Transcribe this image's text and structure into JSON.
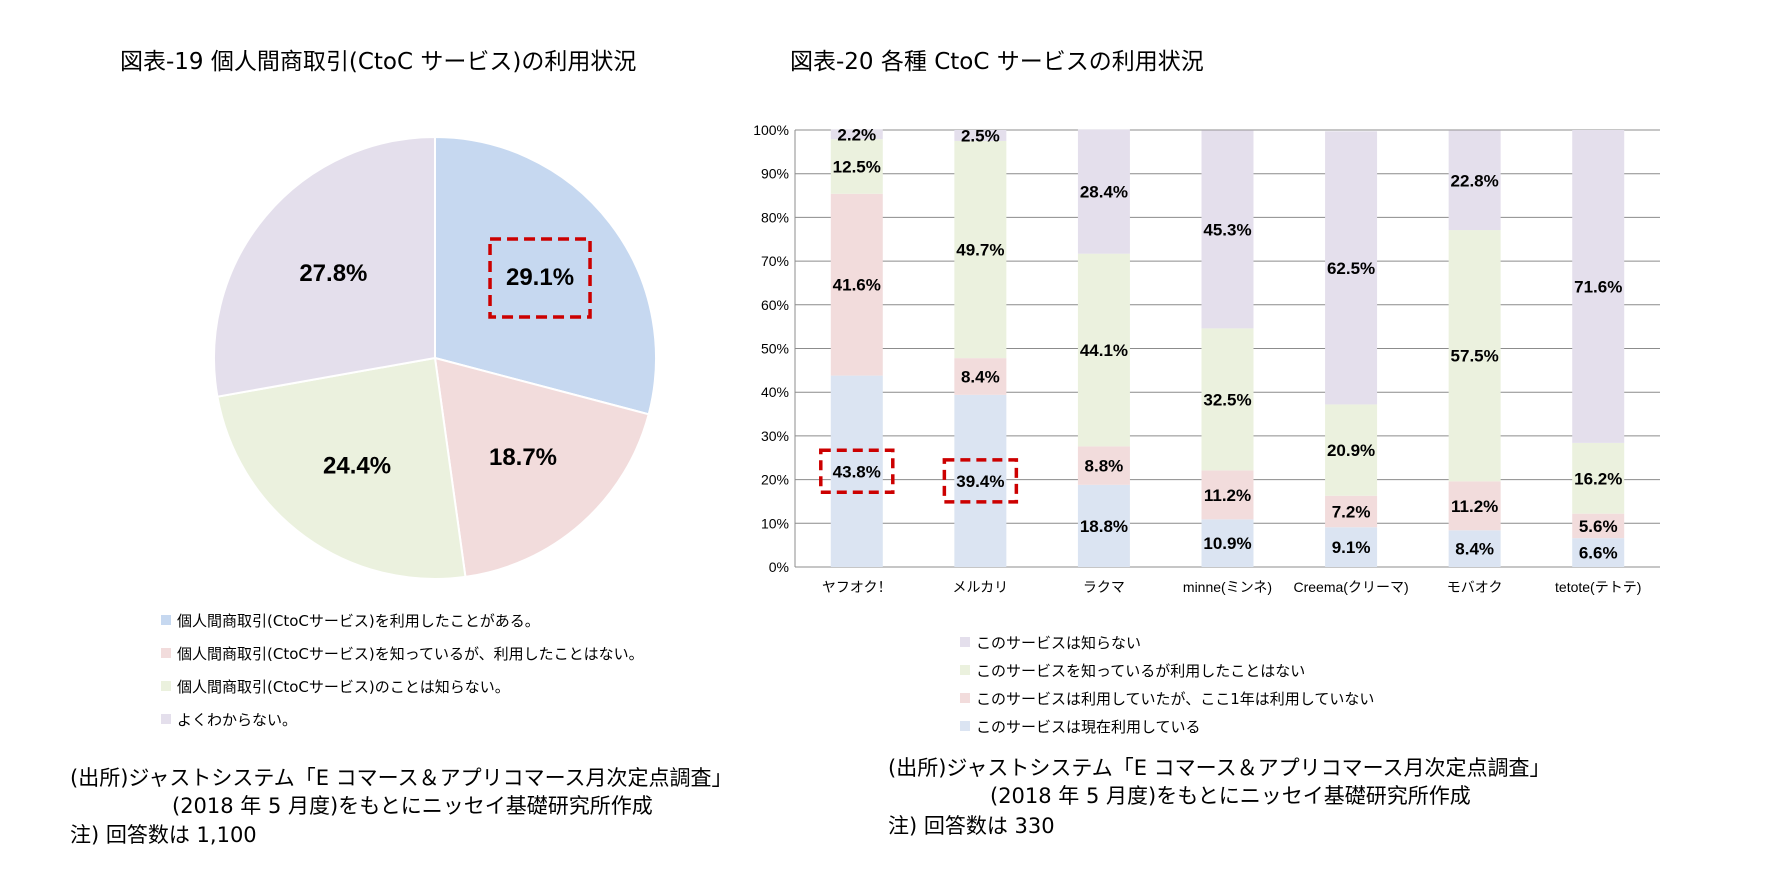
{
  "colors": {
    "used": "#c9d9ef",
    "known_not_used": "#eef1e3",
    "unknown": "#e9e2ee",
    "unsure": "#e9e2ee",
    "bar_used": "#dbe4f2",
    "bar_lapsed": "#f2dcdc",
    "bar_known": "#ebf1de",
    "bar_unknown": "#e4dfec",
    "pie_used": "#c6d8f0",
    "pie_known": "#f2dcdc",
    "pie_unknown": "#ebf1de",
    "pie_unsure": "#e4dfec",
    "highlight": "#cc0000"
  },
  "left": {
    "title": "図表-19 個人間商取引(CtoC サービス)の利用状況",
    "legend": [
      "個人間商取引(CtoCサービス)を利用したことがある。",
      "個人間商取引(CtoCサービス)を知っているが、利用したことはない。",
      "個人間商取引(CtoCサービス)のことは知らない。",
      "よくわからない。"
    ],
    "source_line1": "(出所)ジャストシステム「E コマース＆アプリコマース月次定点調査」",
    "source_line2": "(2018 年 5 月度)をもとにニッセイ基礎研究所作成",
    "note": "注) 回答数は 1,100"
  },
  "right": {
    "title": "図表-20 各種 CtoC サービスの利用状況",
    "legend": [
      "このサービスは知らない",
      "このサービスを知っているが利用したことはない",
      "このサービスは利用していたが、ここ1年は利用していない",
      "このサービスは現在利用している"
    ],
    "source_line1": "(出所)ジャストシステム「E コマース＆アプリコマース月次定点調査」",
    "source_line2": "(2018 年 5 月度)をもとにニッセイ基礎研究所作成",
    "note": "注) 回答数は 330"
  },
  "chart_data": [
    {
      "type": "pie",
      "title": "図表-19 個人間商取引(CtoC サービス)の利用状況",
      "slices": [
        {
          "name": "個人間商取引(CtoCサービス)を利用したことがある。",
          "value": 29.1,
          "label": "29.1%",
          "highlighted": true
        },
        {
          "name": "個人間商取引(CtoCサービス)を知っているが、利用したことはない。",
          "value": 18.7,
          "label": "18.7%"
        },
        {
          "name": "個人間商取引(CtoCサービス)のことは知らない。",
          "value": 24.4,
          "label": "24.4%"
        },
        {
          "name": "よくわからない。",
          "value": 27.8,
          "label": "27.8%"
        }
      ],
      "legend_position": "bottom"
    },
    {
      "type": "bar",
      "stacked": true,
      "title": "図表-20 各種 CtoC サービスの利用状況",
      "categories": [
        "ヤフオク！",
        "メルカリ",
        "ラクマ",
        "minne(ミンネ)",
        "Creema(クリーマ)",
        "モバオク",
        "tetote(テトテ)"
      ],
      "series": [
        {
          "name": "このサービスは現在利用している",
          "values": [
            43.8,
            39.4,
            18.8,
            10.9,
            9.1,
            8.4,
            6.6
          ]
        },
        {
          "name": "このサービスは利用していたが、ここ1年は利用していない",
          "values": [
            41.6,
            8.4,
            8.8,
            11.2,
            7.2,
            11.2,
            5.6
          ]
        },
        {
          "name": "このサービスを知っているが利用したことはない",
          "values": [
            12.5,
            49.7,
            44.1,
            32.5,
            20.9,
            57.5,
            16.2
          ]
        },
        {
          "name": "このサービスは知らない",
          "values": [
            2.2,
            2.5,
            28.4,
            45.3,
            62.5,
            22.8,
            71.6
          ]
        }
      ],
      "highlighted": [
        {
          "category": "ヤフオク！",
          "series": 0
        },
        {
          "category": "メルカリ",
          "series": 0
        }
      ],
      "y_ticks": [
        "0%",
        "10%",
        "20%",
        "30%",
        "40%",
        "50%",
        "60%",
        "70%",
        "80%",
        "90%",
        "100%"
      ],
      "ylim": [
        0,
        100
      ],
      "grid": true,
      "legend_position": "bottom"
    }
  ]
}
